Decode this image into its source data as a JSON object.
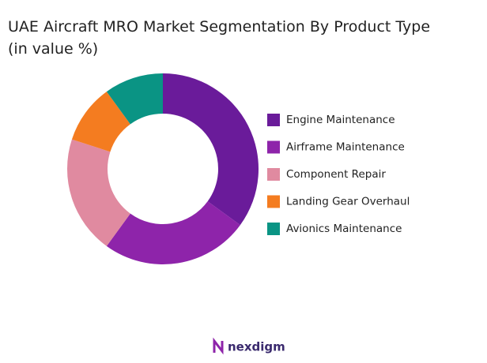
{
  "chart_data": {
    "type": "donut",
    "title": "UAE Aircraft MRO Market Segmentation By Product Type",
    "subtitle": "(in value %)",
    "series": [
      {
        "name": "Engine Maintenance",
        "color": "#6a1b9a",
        "values": [
          35
        ]
      },
      {
        "name": "Airframe Maintenance",
        "color": "#8e24aa",
        "values": [
          25
        ]
      },
      {
        "name": "Component Repair",
        "color": "#e08aa0",
        "values": [
          20
        ]
      },
      {
        "name": "Landing Gear Overhaul",
        "color": "#f47c20",
        "values": [
          10
        ]
      },
      {
        "name": "Avionics Maintenance",
        "color": "#0a9484",
        "values": [
          10
        ]
      }
    ],
    "legend": "right"
  },
  "logo": "nexdigm"
}
